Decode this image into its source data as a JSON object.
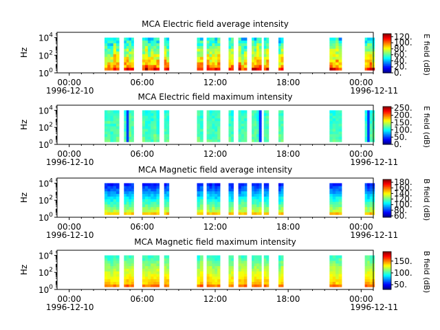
{
  "figure": {
    "background": "#ffffff"
  },
  "chart_data": [
    {
      "type": "heatmap",
      "title": "MCA  Electric field average intensity",
      "ylabel": "Hz",
      "y_scale": "log",
      "y_ticks": [
        "10^4",
        "10^2",
        "10^0"
      ],
      "ylim_log10": [
        0,
        4.6
      ],
      "x_ticks": [
        "00:00",
        "06:00",
        "12:00",
        "18:00",
        "00:00"
      ],
      "x_dates": [
        "1996-12-10",
        "1996-12-11"
      ],
      "xlim_hours": [
        -1,
        25
      ],
      "colorbar": {
        "label": "E field (dB)",
        "ticks": [
          "120.",
          "100.",
          "80.",
          "60.",
          "40.",
          "20.",
          "0."
        ],
        "range": [
          0,
          130
        ]
      },
      "data_intervals_hours": [
        [
          2.9,
          4.1
        ],
        [
          4.5,
          5.3
        ],
        [
          6.0,
          7.4
        ],
        [
          7.8,
          8.2
        ],
        [
          10.5,
          11.0
        ],
        [
          11.3,
          12.4
        ],
        [
          13.1,
          13.5
        ],
        [
          13.9,
          14.6
        ],
        [
          15.0,
          15.8
        ],
        [
          16.0,
          16.4
        ],
        [
          17.2,
          17.6
        ],
        [
          21.4,
          22.4
        ],
        [
          24.3,
          25.1
        ]
      ],
      "data_band_log10": [
        0.3,
        4.0
      ],
      "intensity_profile": "high at low frequency (~80-100 dB), decreasing to ~40-50 dB at high frequency"
    },
    {
      "type": "heatmap",
      "title": "MCA  Electric field maximum intensity",
      "ylabel": "Hz",
      "y_scale": "log",
      "y_ticks": [
        "10^4",
        "10^2",
        "10^0"
      ],
      "ylim_log10": [
        0,
        4.6
      ],
      "x_ticks": [
        "00:00",
        "06:00",
        "12:00",
        "18:00",
        "00:00"
      ],
      "x_dates": [
        "1996-12-10",
        "1996-12-11"
      ],
      "xlim_hours": [
        -1,
        25
      ],
      "colorbar": {
        "label": "E field (dB)",
        "ticks": [
          "250.",
          "200.",
          "150.",
          "100.",
          "50.",
          "0."
        ],
        "range": [
          0,
          260
        ]
      },
      "data_intervals_hours": [
        [
          2.9,
          4.1
        ],
        [
          4.5,
          5.3
        ],
        [
          6.0,
          7.4
        ],
        [
          7.8,
          8.2
        ],
        [
          10.5,
          11.0
        ],
        [
          11.3,
          12.4
        ],
        [
          13.1,
          13.5
        ],
        [
          13.9,
          14.6
        ],
        [
          15.0,
          15.8
        ],
        [
          16.0,
          16.4
        ],
        [
          17.2,
          17.6
        ],
        [
          21.4,
          22.4
        ],
        [
          24.3,
          25.1
        ]
      ],
      "data_band_log10": [
        0.3,
        4.0
      ],
      "intensity_profile": "mostly uniform ~100-130 dB with occasional low (blue) streaks"
    },
    {
      "type": "heatmap",
      "title": "MCA  Magnetic field average intensity",
      "ylabel": "Hz",
      "y_scale": "log",
      "y_ticks": [
        "10^4",
        "10^2",
        "10^0"
      ],
      "ylim_log10": [
        0,
        4.6
      ],
      "x_ticks": [
        "00:00",
        "06:00",
        "12:00",
        "18:00",
        "00:00"
      ],
      "x_dates": [
        "1996-12-10",
        "1996-12-11"
      ],
      "xlim_hours": [
        -1,
        25
      ],
      "colorbar": {
        "label": "B field (dB)",
        "ticks": [
          "180.",
          "160.",
          "140.",
          "120.",
          "100.",
          "80.",
          "60."
        ],
        "range": [
          55,
          190
        ]
      },
      "data_intervals_hours": [
        [
          2.9,
          4.1
        ],
        [
          4.5,
          5.3
        ],
        [
          6.0,
          7.4
        ],
        [
          7.8,
          8.2
        ],
        [
          10.5,
          11.0
        ],
        [
          11.3,
          12.4
        ],
        [
          13.1,
          13.5
        ],
        [
          13.9,
          14.6
        ],
        [
          15.0,
          15.8
        ],
        [
          16.0,
          16.4
        ],
        [
          17.2,
          17.6
        ],
        [
          21.4,
          22.4
        ],
        [
          24.3,
          25.1
        ]
      ],
      "data_band_log10": [
        0.3,
        4.0
      ],
      "intensity_profile": "high at low frequency (~130-150 dB), low at high frequency (~70-90 dB)"
    },
    {
      "type": "heatmap",
      "title": "MCA  Magnetic field maximum intensity",
      "ylabel": "Hz",
      "y_scale": "log",
      "y_ticks": [
        "10^4",
        "10^2",
        "10^0"
      ],
      "ylim_log10": [
        0,
        4.6
      ],
      "x_ticks": [
        "00:00",
        "06:00",
        "12:00",
        "18:00",
        "00:00"
      ],
      "x_dates": [
        "1996-12-10",
        "1996-12-11"
      ],
      "xlim_hours": [
        -1,
        25
      ],
      "colorbar": {
        "label": "B field (dB)",
        "ticks": [
          "150.",
          "100.",
          "50."
        ],
        "range": [
          30,
          190
        ]
      },
      "data_intervals_hours": [
        [
          2.9,
          4.1
        ],
        [
          4.5,
          5.3
        ],
        [
          6.0,
          7.4
        ],
        [
          7.8,
          8.2
        ],
        [
          10.5,
          11.0
        ],
        [
          11.3,
          12.4
        ],
        [
          13.1,
          13.5
        ],
        [
          13.9,
          14.6
        ],
        [
          15.0,
          15.8
        ],
        [
          16.0,
          16.4
        ],
        [
          17.2,
          17.6
        ],
        [
          21.4,
          22.4
        ],
        [
          24.3,
          25.1
        ]
      ],
      "data_band_log10": [
        0.3,
        4.0
      ],
      "intensity_profile": "high at low frequency (~140-160 dB), moderate ~100-120 dB at high frequency"
    }
  ]
}
